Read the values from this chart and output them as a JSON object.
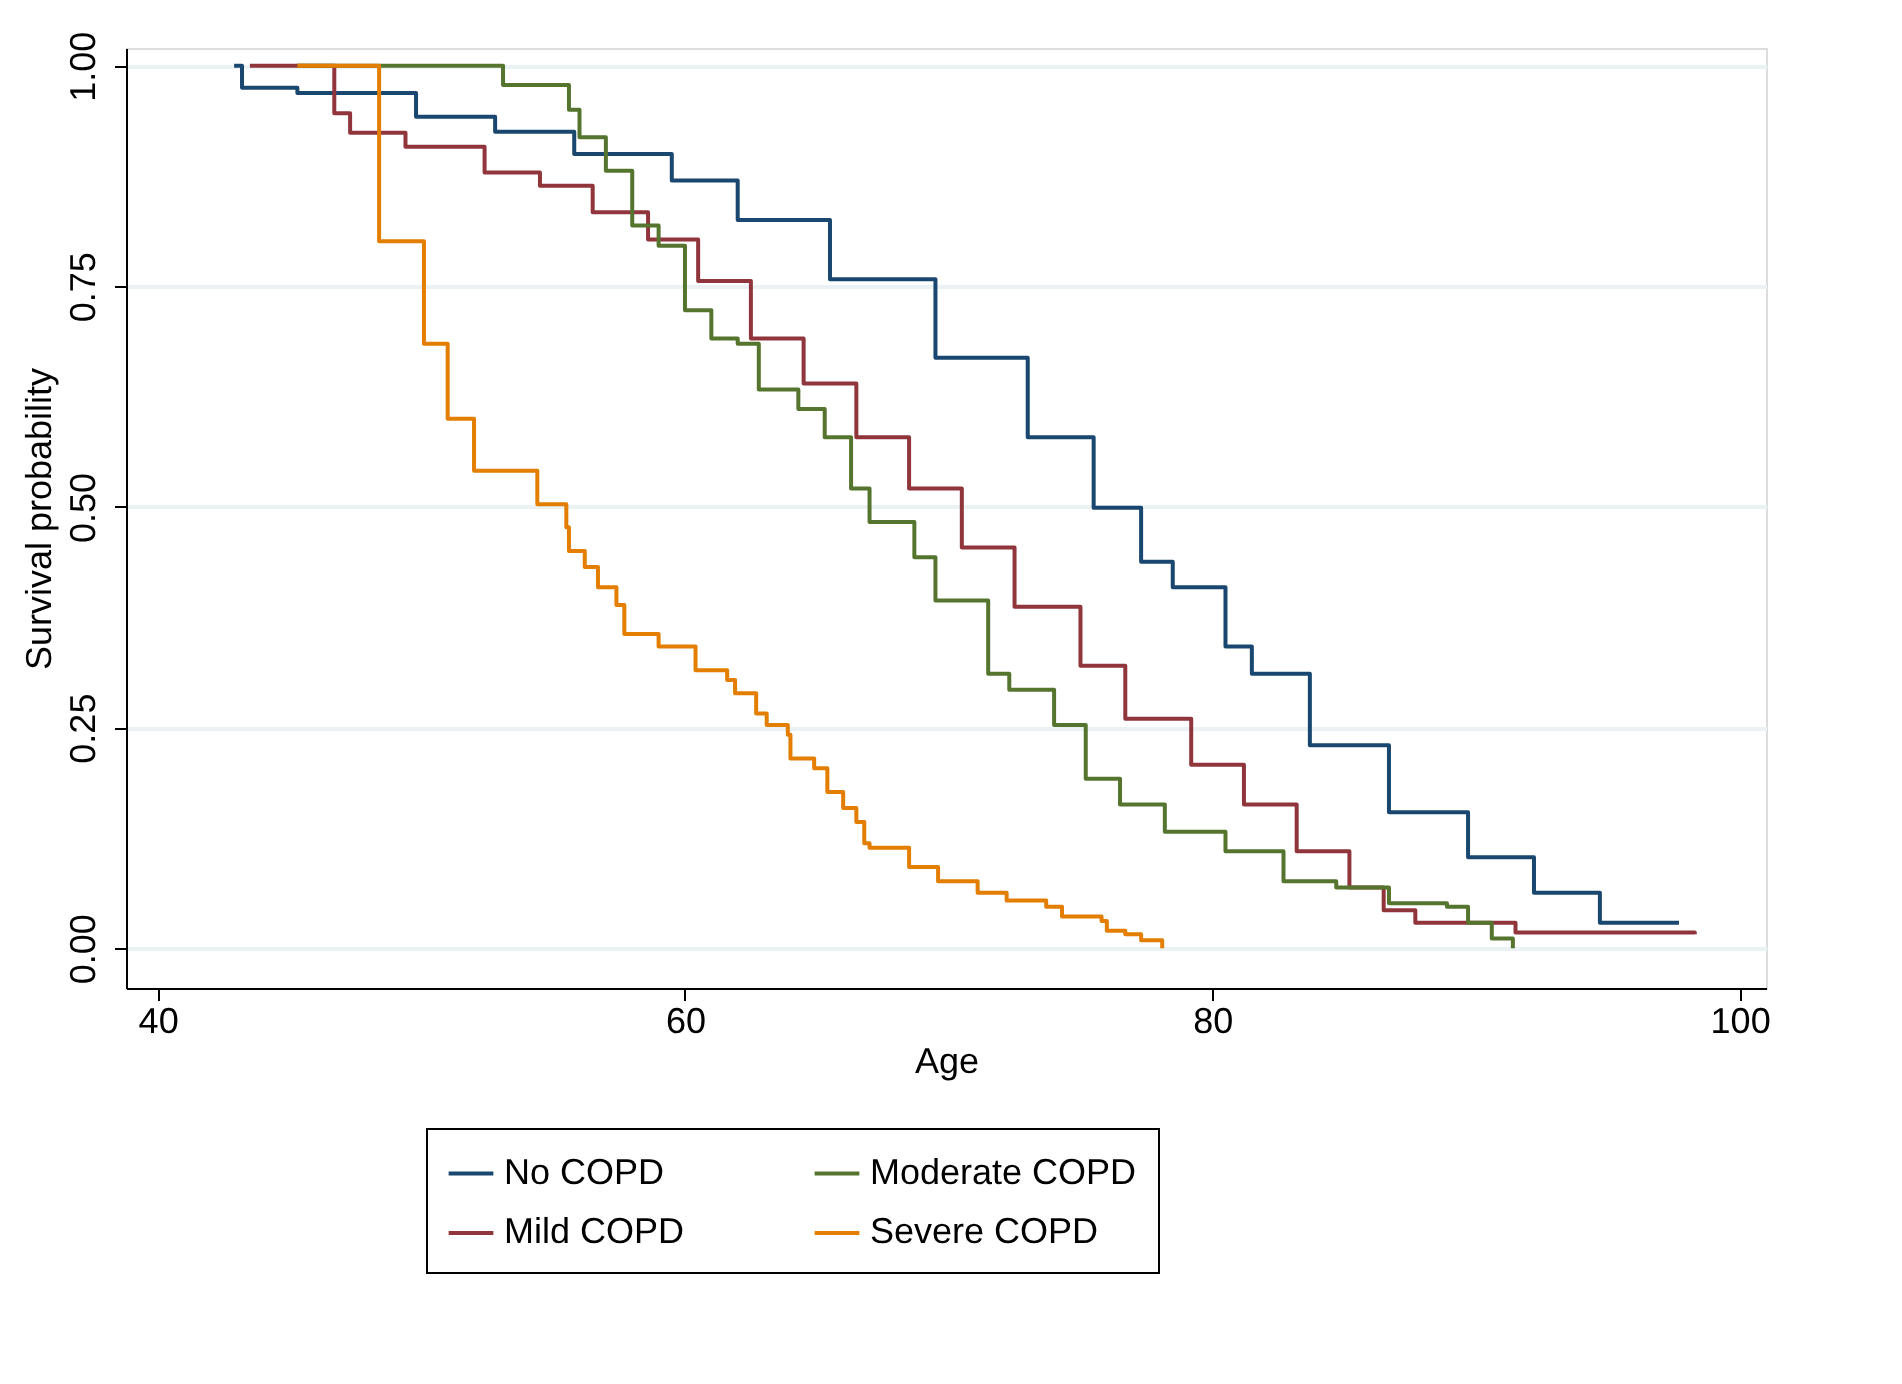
{
  "chart_data": {
    "type": "step",
    "xlabel": "Age",
    "ylabel": "Survival probability",
    "xlim": [
      38.8,
      101.0
    ],
    "xticks": [
      40,
      60,
      80,
      100
    ],
    "ylim": [
      -0.045,
      1.02
    ],
    "yticks": [
      {
        "value": 0,
        "label": "0.00"
      },
      {
        "value": 0.25,
        "label": "0.25"
      },
      {
        "value": 0.5,
        "label": "0.50"
      },
      {
        "value": 0.75,
        "label": "0.75"
      },
      {
        "value": 1,
        "label": "1.00"
      }
    ],
    "grid": "y",
    "legend": "bottom",
    "line_style": "solid",
    "marker": "none",
    "series": [
      {
        "name": "No COPD",
        "color": "#1a476f",
        "x": [
          42.9,
          43.2,
          45.3,
          49.8,
          52.8,
          55.8,
          59.5,
          62.0,
          65.5,
          69.5,
          73.0,
          75.5,
          77.3,
          78.5,
          80.5,
          81.5,
          83.7,
          86.7,
          89.7,
          92.2,
          94.7,
          97.7
        ],
        "values": [
          1.0,
          0.975,
          0.969,
          0.942,
          0.925,
          0.9,
          0.87,
          0.825,
          0.758,
          0.669,
          0.579,
          0.499,
          0.438,
          0.409,
          0.342,
          0.311,
          0.23,
          0.154,
          0.103,
          0.063,
          0.029,
          0.029
        ]
      },
      {
        "name": "Mild COPD",
        "color": "#90353b",
        "x": [
          43.5,
          46.7,
          47.3,
          49.4,
          51.1,
          52.4,
          54.5,
          56.5,
          58.6,
          60.5,
          62.5,
          64.5,
          66.5,
          68.5,
          70.5,
          72.5,
          75.0,
          76.7,
          79.2,
          81.2,
          83.2,
          85.2,
          86.5,
          87.7,
          91.5,
          98.3
        ],
        "values": [
          1.0,
          0.946,
          0.924,
          0.908,
          0.908,
          0.879,
          0.864,
          0.834,
          0.803,
          0.756,
          0.691,
          0.64,
          0.579,
          0.521,
          0.454,
          0.387,
          0.32,
          0.26,
          0.208,
          0.163,
          0.11,
          0.069,
          0.043,
          0.029,
          0.018,
          0.016
        ]
      },
      {
        "name": "Moderate COPD",
        "color": "#55752f",
        "x": [
          45.3,
          53.1,
          55.6,
          56.0,
          57.0,
          58.0,
          59.0,
          60.0,
          61.0,
          62.0,
          62.8,
          64.3,
          65.3,
          66.3,
          67.0,
          68.7,
          69.5,
          71.5,
          72.3,
          74.0,
          75.2,
          76.5,
          78.2,
          80.5,
          82.7,
          84.7,
          86.7,
          88.9,
          89.7,
          90.6,
          91.4
        ],
        "values": [
          1.0,
          0.978,
          0.95,
          0.919,
          0.881,
          0.819,
          0.796,
          0.723,
          0.691,
          0.685,
          0.633,
          0.611,
          0.579,
          0.521,
          0.483,
          0.443,
          0.394,
          0.311,
          0.293,
          0.253,
          0.192,
          0.163,
          0.132,
          0.11,
          0.076,
          0.069,
          0.051,
          0.047,
          0.029,
          0.011,
          0.0
        ]
      },
      {
        "name": "Severe COPD",
        "color": "#e37e00",
        "x": [
          45.3,
          48.4,
          50.1,
          51.0,
          52.0,
          54.4,
          55.5,
          55.6,
          56.2,
          56.7,
          57.4,
          57.7,
          59.0,
          60.4,
          61.6,
          61.9,
          62.7,
          63.1,
          63.9,
          64.0,
          64.9,
          65.4,
          66.0,
          66.5,
          66.8,
          67.0,
          68.5,
          69.6,
          71.1,
          72.2,
          73.7,
          74.3,
          75.8,
          76.0,
          76.7,
          77.3,
          78.1
        ],
        "values": [
          1.0,
          0.801,
          0.685,
          0.6,
          0.541,
          0.503,
          0.477,
          0.45,
          0.432,
          0.409,
          0.389,
          0.356,
          0.342,
          0.315,
          0.304,
          0.289,
          0.266,
          0.253,
          0.242,
          0.215,
          0.204,
          0.177,
          0.159,
          0.143,
          0.119,
          0.114,
          0.092,
          0.076,
          0.063,
          0.054,
          0.047,
          0.036,
          0.031,
          0.02,
          0.016,
          0.009,
          0.0
        ]
      }
    ]
  }
}
